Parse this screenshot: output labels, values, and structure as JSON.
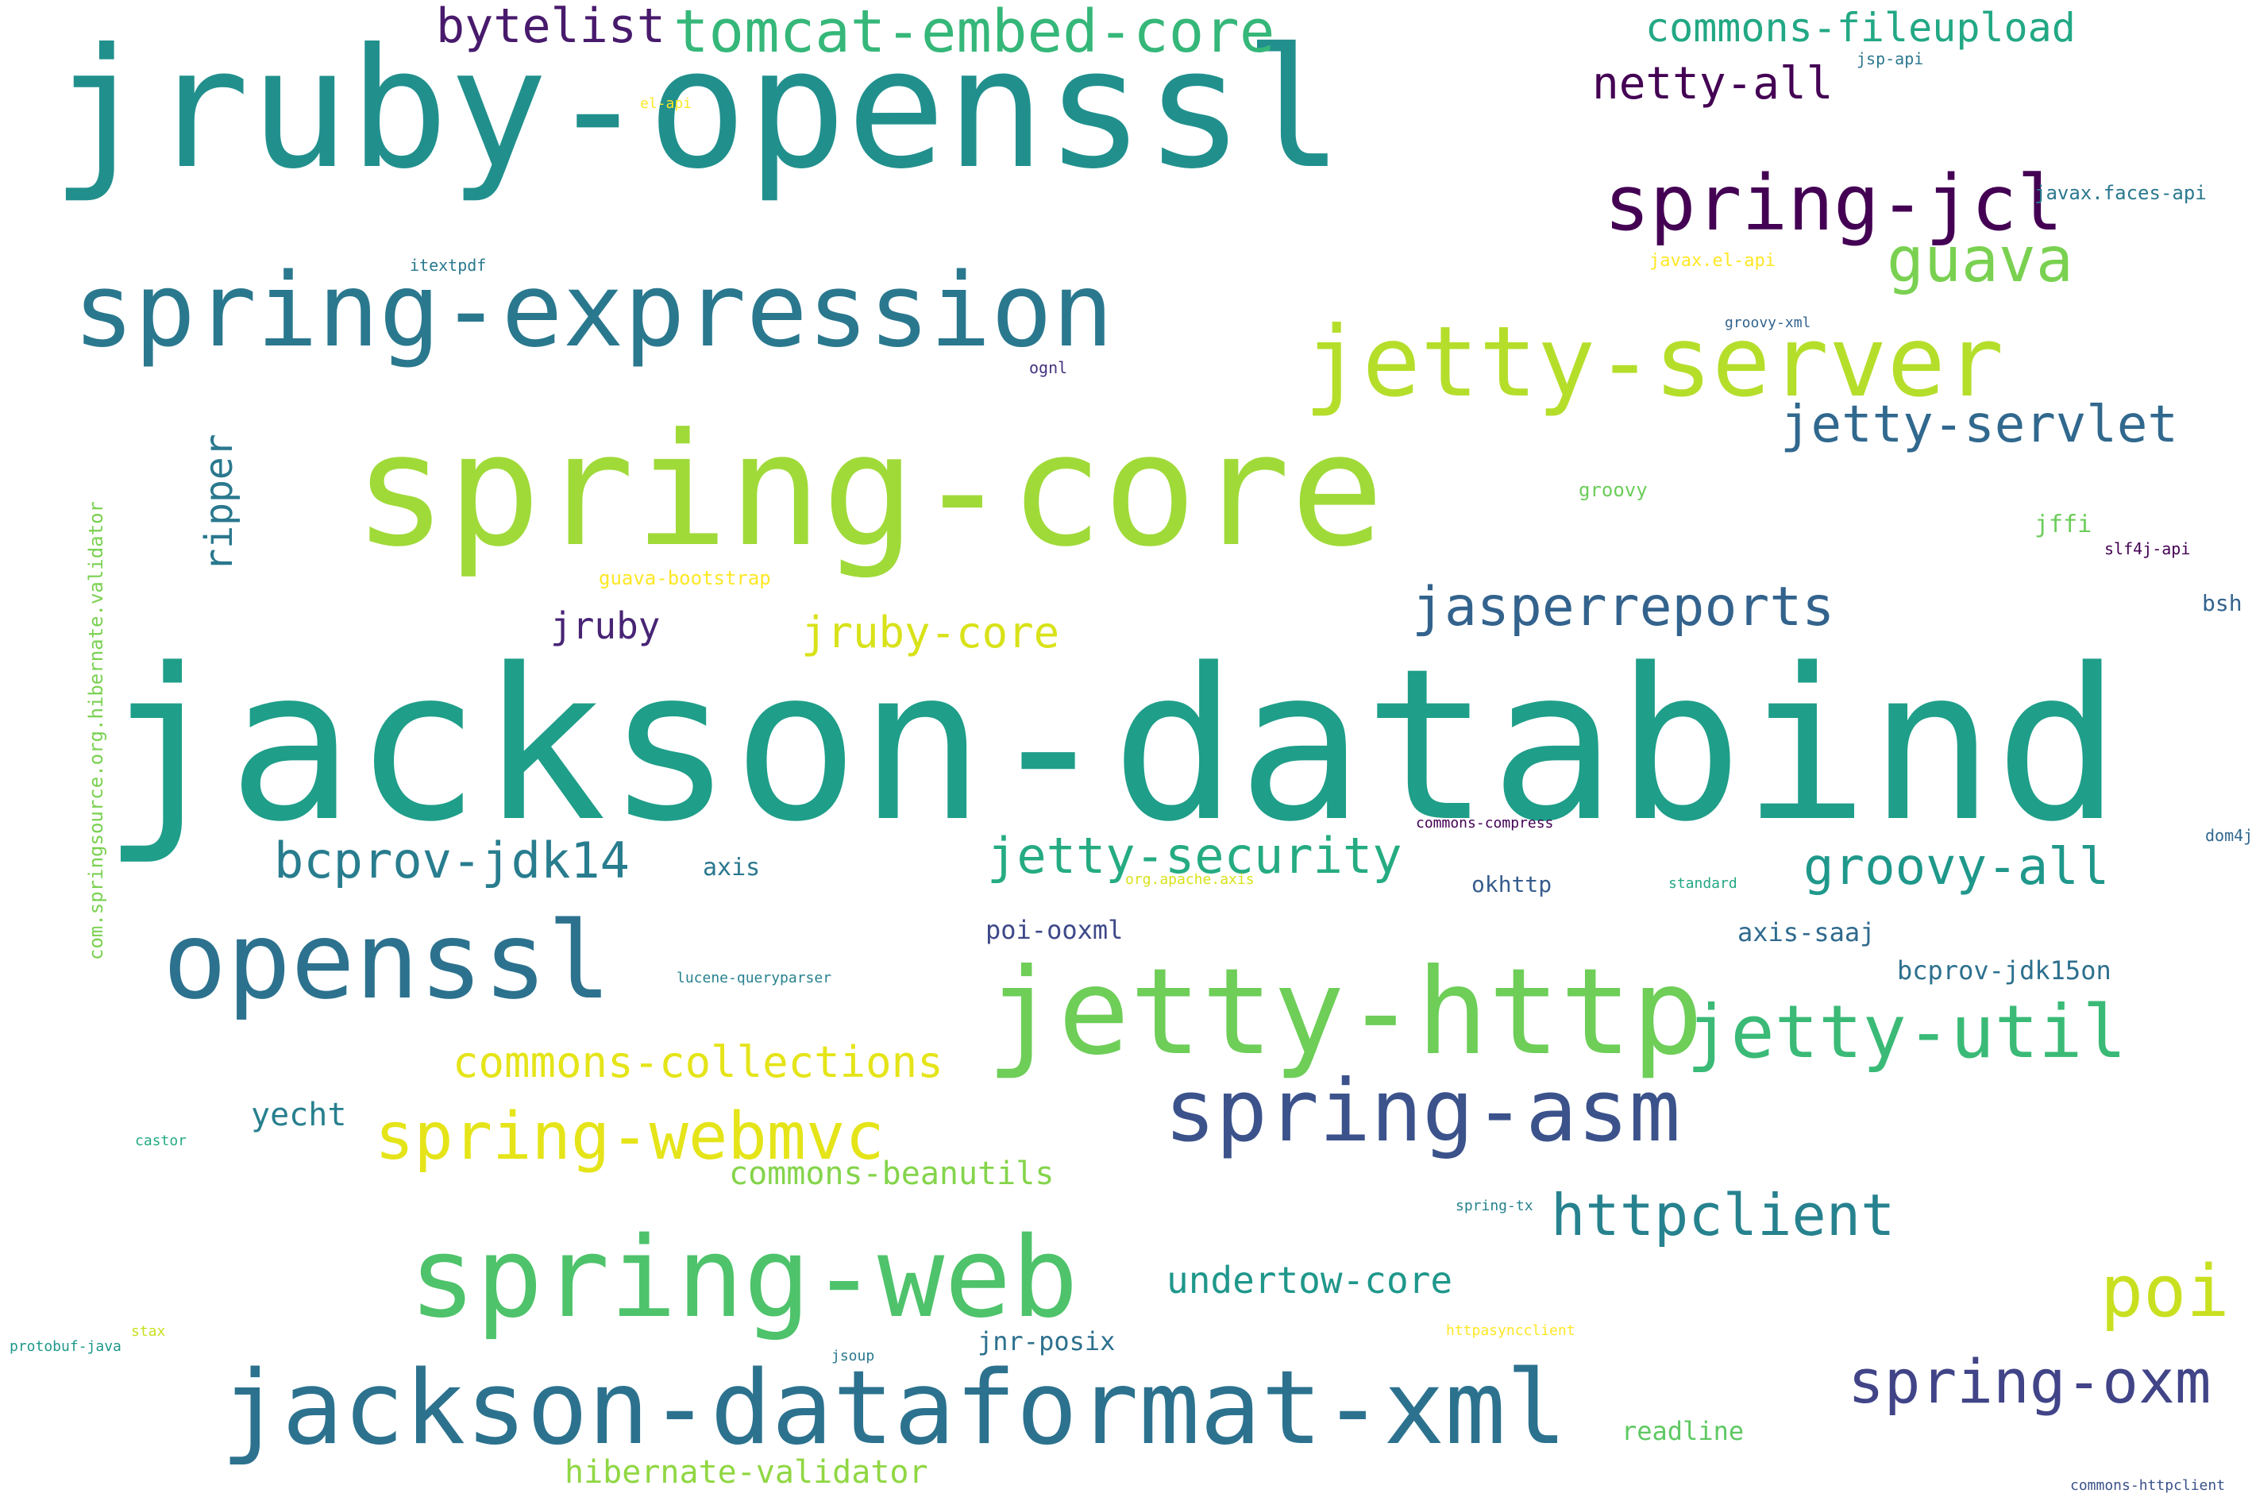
{
  "words": [
    {
      "text": "jruby-openssl",
      "color": "#21908d"
    },
    {
      "text": "jackson-databind",
      "color": "#1f9e89"
    },
    {
      "text": "spring-core",
      "color": "#a0da39"
    },
    {
      "text": "spring-expression",
      "color": "#2a788e"
    },
    {
      "text": "jetty-server",
      "color": "#b5de2b"
    },
    {
      "text": "spring-jcl",
      "color": "#440154"
    },
    {
      "text": "tomcat-embed-core",
      "color": "#35b779"
    },
    {
      "text": "bytelist",
      "color": "#481a6c"
    },
    {
      "text": "commons-fileupload",
      "color": "#22a884"
    },
    {
      "text": "netty-all",
      "color": "#440154"
    },
    {
      "text": "guava",
      "color": "#7ad151"
    },
    {
      "text": "jetty-servlet",
      "color": "#31688e"
    },
    {
      "text": "openssl",
      "color": "#2c728e"
    },
    {
      "text": "jetty-http",
      "color": "#6ece58"
    },
    {
      "text": "jetty-util",
      "color": "#3aba76"
    },
    {
      "text": "spring-asm",
      "color": "#3b528b"
    },
    {
      "text": "spring-web",
      "color": "#4ec36b"
    },
    {
      "text": "jackson-dataformat-xml",
      "color": "#2c728e"
    },
    {
      "text": "jasperreports",
      "color": "#33638d"
    },
    {
      "text": "bcprov-jdk14",
      "color": "#287d8e"
    },
    {
      "text": "jetty-security",
      "color": "#25ab82"
    },
    {
      "text": "groovy-all",
      "color": "#1f988b"
    },
    {
      "text": "spring-webmvc",
      "color": "#e5e419"
    },
    {
      "text": "commons-collections",
      "color": "#e5e419"
    },
    {
      "text": "httpclient",
      "color": "#26828e"
    },
    {
      "text": "poi",
      "color": "#c8e020"
    },
    {
      "text": "spring-oxm",
      "color": "#414487"
    },
    {
      "text": "undertow-core",
      "color": "#1f978b"
    },
    {
      "text": "jruby-core",
      "color": "#d8e219"
    },
    {
      "text": "jruby",
      "color": "#482475"
    },
    {
      "text": "ripper",
      "color": "#2a788e"
    },
    {
      "text": "hibernate-validator",
      "color": "#90d743"
    },
    {
      "text": "commons-beanutils",
      "color": "#84d44b"
    },
    {
      "text": "yecht",
      "color": "#277f8e"
    },
    {
      "text": "readline",
      "color": "#5ec962"
    },
    {
      "text": "jnr-posix",
      "color": "#2d708e"
    },
    {
      "text": "axis-saaj",
      "color": "#306a8e"
    },
    {
      "text": "bcprov-jdk15on",
      "color": "#2d708e"
    },
    {
      "text": "poi-ooxml",
      "color": "#3e4989"
    },
    {
      "text": "okhttp",
      "color": "#365c8d"
    },
    {
      "text": "axis",
      "color": "#2a788e"
    },
    {
      "text": "jffi",
      "color": "#6ccd5a"
    },
    {
      "text": "bsh",
      "color": "#33638d"
    },
    {
      "text": "groovy",
      "color": "#6ccd5a"
    },
    {
      "text": "javax.faces-api",
      "color": "#2a788e"
    },
    {
      "text": "guava-bootstrap",
      "color": "#fde725"
    },
    {
      "text": "javax.el-api",
      "color": "#fde725"
    },
    {
      "text": "groovy-xml",
      "color": "#33638d"
    },
    {
      "text": "ognl",
      "color": "#46337f"
    },
    {
      "text": "itextpdf",
      "color": "#2a788e"
    },
    {
      "text": "jsp-api",
      "color": "#2a788e"
    },
    {
      "text": "el-api",
      "color": "#fde725"
    },
    {
      "text": "slf4j-api",
      "color": "#440154"
    },
    {
      "text": "dom4j",
      "color": "#31688e"
    },
    {
      "text": "commons-compress",
      "color": "#440154"
    },
    {
      "text": "org.apache.axis",
      "color": "#d8e219"
    },
    {
      "text": "standard",
      "color": "#22a884"
    },
    {
      "text": "lucene-queryparser",
      "color": "#26828e"
    },
    {
      "text": "castor",
      "color": "#25ab82"
    },
    {
      "text": "spring-tx",
      "color": "#26828e"
    },
    {
      "text": "stax",
      "color": "#c8e020"
    },
    {
      "text": "protobuf-java",
      "color": "#1f988b"
    },
    {
      "text": "jsoup",
      "color": "#2a788e"
    },
    {
      "text": "httpasyncclient",
      "color": "#fde725"
    },
    {
      "text": "commons-httpclient",
      "color": "#3b528b"
    },
    {
      "text": "com.springsource.org.hibernate.validator",
      "color": "#7ad151"
    }
  ]
}
